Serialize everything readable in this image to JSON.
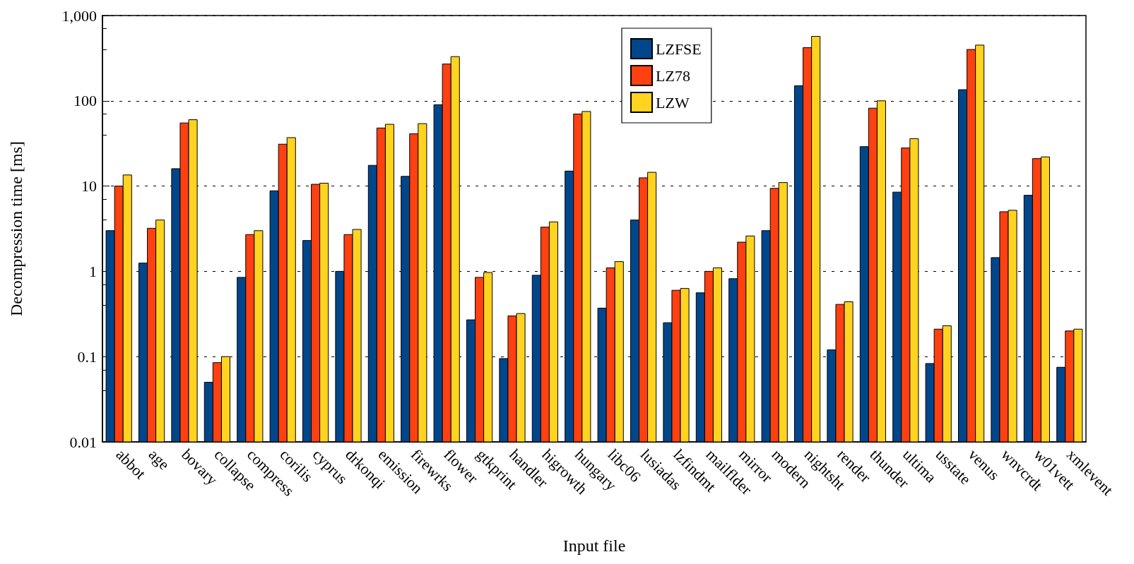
{
  "chart_data": {
    "type": "bar",
    "xlabel": "Input file",
    "ylabel": "Decompression time [ms]",
    "categories": [
      "abbot",
      "age",
      "bovary",
      "collapse",
      "compress",
      "corilis",
      "cyprus",
      "drkonqi",
      "emission",
      "firewrks",
      "flower",
      "gtkprint",
      "handler",
      "higrowth",
      "hungary",
      "libc06",
      "lusiadas",
      "lzfindmt",
      "mailflder",
      "mirror",
      "modern",
      "nightsht",
      "render",
      "thunder",
      "ultima",
      "usstate",
      "venus",
      "wnvcrdt",
      "w01vett",
      "xmlevent"
    ],
    "series": [
      {
        "name": "LZFSE",
        "color": "#00468b",
        "values": [
          3,
          1.25,
          16,
          0.05,
          0.85,
          8.8,
          2.3,
          1.0,
          17.5,
          13,
          90,
          0.27,
          0.095,
          0.9,
          15,
          0.37,
          4.0,
          0.25,
          0.56,
          0.82,
          3,
          150,
          0.12,
          29,
          8.5,
          0.083,
          135,
          1.45,
          7.8,
          0.075
        ]
      },
      {
        "name": "LZ78",
        "color": "#ff4010",
        "values": [
          10,
          3.2,
          55,
          0.085,
          2.7,
          31,
          10.5,
          2.7,
          48,
          41,
          270,
          0.85,
          0.3,
          3.3,
          70,
          1.1,
          12.5,
          0.6,
          1.0,
          2.2,
          9.4,
          420,
          0.41,
          82,
          28,
          0.21,
          400,
          5,
          21,
          0.2
        ]
      },
      {
        "name": "LZW",
        "color": "#ffd320",
        "values": [
          13.5,
          4,
          60,
          0.1,
          3,
          37,
          10.8,
          3.1,
          53,
          54,
          330,
          0.97,
          0.32,
          3.8,
          75,
          1.3,
          14.5,
          0.63,
          1.1,
          2.6,
          11,
          570,
          0.44,
          100,
          36,
          0.23,
          450,
          5.2,
          22,
          0.21
        ]
      }
    ],
    "log": true,
    "ylim": [
      0.01,
      1000
    ],
    "yticks": [
      0.01,
      0.1,
      1,
      10,
      100,
      {
        "value": 1000,
        "label": "1,000"
      }
    ],
    "grid": "y",
    "legend": "top"
  }
}
